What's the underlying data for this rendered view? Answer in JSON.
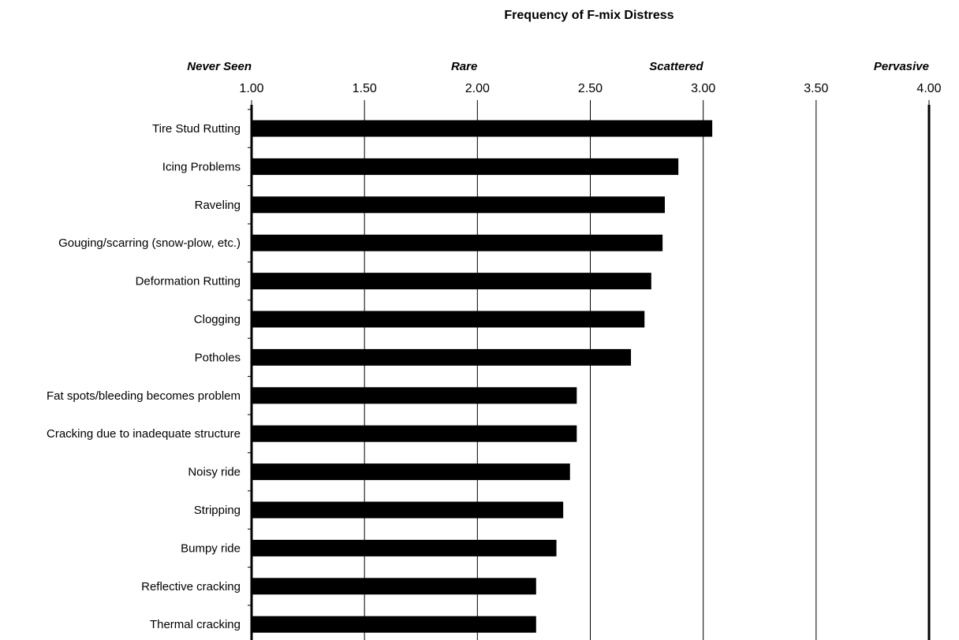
{
  "chart_data": {
    "type": "bar",
    "orientation": "horizontal",
    "title": "Frequency of F-mix Distress",
    "xlim": [
      1.0,
      4.0
    ],
    "x_ticks": [
      "1.00",
      "1.50",
      "2.00",
      "2.50",
      "3.00",
      "3.50",
      "4.00"
    ],
    "x_tick_values": [
      1.0,
      1.5,
      2.0,
      2.5,
      3.0,
      3.5,
      4.0
    ],
    "axis_position": "top",
    "grid": true,
    "scale_labels": [
      {
        "text": "Never Seen",
        "value": 1.0
      },
      {
        "text": "Rare",
        "value": 2.0
      },
      {
        "text": "Scattered",
        "value": 3.0
      },
      {
        "text": "Pervasive",
        "value": 4.0
      }
    ],
    "categories": [
      "Tire Stud Rutting",
      "Icing Problems",
      "Raveling",
      "Gouging/scarring (snow-plow, etc.)",
      "Deformation Rutting",
      "Clogging",
      "Potholes",
      "Fat spots/bleeding becomes problem",
      "Cracking due to inadequate structure",
      "Noisy ride",
      "Stripping",
      "Bumpy ride",
      "Reflective cracking",
      "Thermal cracking"
    ],
    "values": [
      3.04,
      2.89,
      2.83,
      2.82,
      2.77,
      2.74,
      2.68,
      2.44,
      2.44,
      2.41,
      2.38,
      2.35,
      2.26,
      2.26
    ],
    "bar_color": "#000000"
  }
}
